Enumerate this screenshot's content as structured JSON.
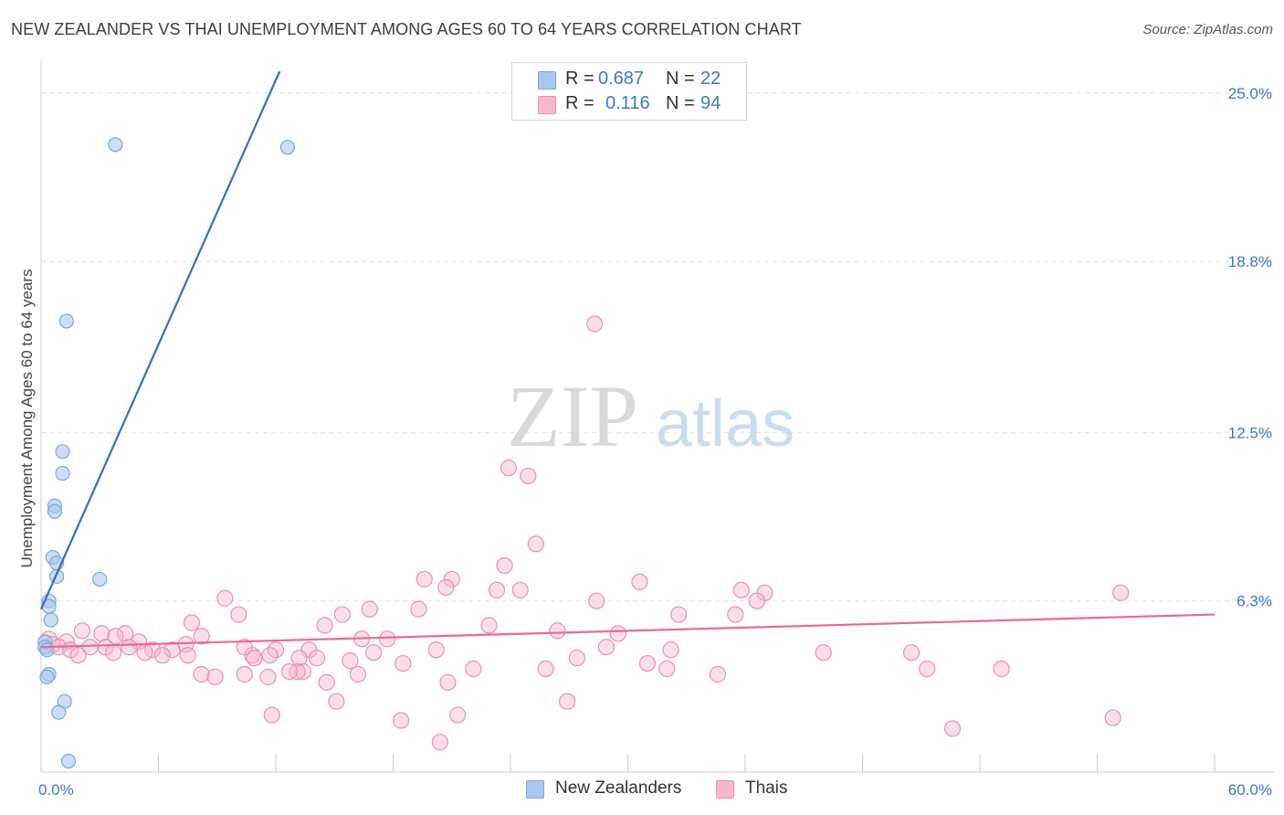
{
  "title": "NEW ZEALANDER VS THAI UNEMPLOYMENT AMONG AGES 60 TO 64 YEARS CORRELATION CHART",
  "source": "Source: ZipAtlas.com",
  "watermark": {
    "zip": "ZIP",
    "atlas": "atlas"
  },
  "colors": {
    "blue_fill": "#a9c8ef",
    "blue_stroke": "#7aa6dd",
    "blue_line": "#2d6fc7",
    "pink_fill": "#f7b8cc",
    "pink_stroke": "#ee8fad",
    "pink_line": "#e76a95",
    "axis_text": "#3b78c6",
    "grid": "#e0e0e0"
  },
  "stats": {
    "rows": [
      {
        "r_label": "R =",
        "r_value": "0.687",
        "n_label": "N =",
        "n_value": "22",
        "color": "#a9c8ef",
        "border": "#7aa6dd"
      },
      {
        "r_label": "R =",
        "r_value": "0.116",
        "n_label": "N =",
        "n_value": "94",
        "color": "#f7b8cc",
        "border": "#ee8fad"
      }
    ]
  },
  "legend": [
    {
      "label": "New Zealanders",
      "color": "#a9c8ef",
      "border": "#7aa6dd"
    },
    {
      "label": "Thais",
      "color": "#f7b8cc",
      "border": "#ee8fad"
    }
  ],
  "chart_data": {
    "type": "scatter",
    "title": "NEW ZEALANDER VS THAI UNEMPLOYMENT AMONG AGES 60 TO 64 YEARS CORRELATION CHART",
    "xlabel": "",
    "ylabel": "Unemployment Among Ages 60 to 64 years",
    "xlim": [
      0,
      60
    ],
    "ylim": [
      0,
      25.8
    ],
    "x_tick_labels": [
      {
        "value": 0,
        "label": "0.0%"
      },
      {
        "value": 60,
        "label": "60.0%"
      }
    ],
    "y_tick_labels": [
      {
        "value": 6.3,
        "label": "6.3%"
      },
      {
        "value": 12.5,
        "label": "12.5%"
      },
      {
        "value": 18.8,
        "label": "18.8%"
      },
      {
        "value": 25.0,
        "label": "25.0%"
      }
    ],
    "series": [
      {
        "name": "New Zealanders",
        "r": 0.687,
        "n": 22,
        "trend": {
          "x0": 0.0,
          "y0": 6.0,
          "x1": 12.2,
          "y1": 25.8
        },
        "points": [
          [
            3.8,
            23.1
          ],
          [
            12.6,
            23.0
          ],
          [
            1.3,
            16.6
          ],
          [
            1.1,
            11.8
          ],
          [
            1.1,
            11.0
          ],
          [
            0.7,
            9.8
          ],
          [
            0.7,
            9.6
          ],
          [
            0.6,
            7.9
          ],
          [
            0.8,
            7.7
          ],
          [
            0.8,
            7.2
          ],
          [
            3.0,
            7.1
          ],
          [
            0.4,
            6.3
          ],
          [
            0.4,
            6.1
          ],
          [
            0.5,
            5.6
          ],
          [
            0.2,
            4.8
          ],
          [
            0.2,
            4.6
          ],
          [
            0.3,
            4.5
          ],
          [
            0.4,
            3.6
          ],
          [
            0.3,
            3.5
          ],
          [
            1.2,
            2.6
          ],
          [
            0.9,
            2.2
          ],
          [
            1.4,
            0.4
          ]
        ]
      },
      {
        "name": "Thais",
        "r": 0.116,
        "n": 94,
        "trend": {
          "x0": 0.0,
          "y0": 4.6,
          "x1": 60.0,
          "y1": 5.8
        },
        "points": [
          [
            28.3,
            16.5
          ],
          [
            23.9,
            11.2
          ],
          [
            24.9,
            10.9
          ],
          [
            25.3,
            8.4
          ],
          [
            23.7,
            7.6
          ],
          [
            19.6,
            7.1
          ],
          [
            21.0,
            7.1
          ],
          [
            30.6,
            7.0
          ],
          [
            20.7,
            6.8
          ],
          [
            23.3,
            6.7
          ],
          [
            24.5,
            6.7
          ],
          [
            35.8,
            6.7
          ],
          [
            37.0,
            6.6
          ],
          [
            55.2,
            6.6
          ],
          [
            9.4,
            6.4
          ],
          [
            28.4,
            6.3
          ],
          [
            36.6,
            6.3
          ],
          [
            19.3,
            6.0
          ],
          [
            16.8,
            6.0
          ],
          [
            10.1,
            5.8
          ],
          [
            15.4,
            5.8
          ],
          [
            32.6,
            5.8
          ],
          [
            35.5,
            5.8
          ],
          [
            7.7,
            5.5
          ],
          [
            14.5,
            5.4
          ],
          [
            22.9,
            5.4
          ],
          [
            2.1,
            5.2
          ],
          [
            4.3,
            5.1
          ],
          [
            3.1,
            5.1
          ],
          [
            26.4,
            5.2
          ],
          [
            29.5,
            5.1
          ],
          [
            3.8,
            5.0
          ],
          [
            8.2,
            5.0
          ],
          [
            16.4,
            4.9
          ],
          [
            17.7,
            4.9
          ],
          [
            1.3,
            4.8
          ],
          [
            5.0,
            4.8
          ],
          [
            7.4,
            4.7
          ],
          [
            0.4,
            4.9
          ],
          [
            0.6,
            4.7
          ],
          [
            0.9,
            4.6
          ],
          [
            1.5,
            4.5
          ],
          [
            2.5,
            4.6
          ],
          [
            3.3,
            4.6
          ],
          [
            4.5,
            4.6
          ],
          [
            5.7,
            4.5
          ],
          [
            6.7,
            4.5
          ],
          [
            10.4,
            4.6
          ],
          [
            12.0,
            4.5
          ],
          [
            13.7,
            4.5
          ],
          [
            17.0,
            4.4
          ],
          [
            20.2,
            4.5
          ],
          [
            28.9,
            4.6
          ],
          [
            32.2,
            4.5
          ],
          [
            40.0,
            4.4
          ],
          [
            44.5,
            4.4
          ],
          [
            1.9,
            4.3
          ],
          [
            3.7,
            4.4
          ],
          [
            5.3,
            4.4
          ],
          [
            6.2,
            4.3
          ],
          [
            7.5,
            4.3
          ],
          [
            10.8,
            4.3
          ],
          [
            11.7,
            4.3
          ],
          [
            13.2,
            4.2
          ],
          [
            14.1,
            4.2
          ],
          [
            15.8,
            4.1
          ],
          [
            18.5,
            4.0
          ],
          [
            27.4,
            4.2
          ],
          [
            31.0,
            4.0
          ],
          [
            32.0,
            3.8
          ],
          [
            45.3,
            3.8
          ],
          [
            49.1,
            3.8
          ],
          [
            8.2,
            3.6
          ],
          [
            10.4,
            3.6
          ],
          [
            13.4,
            3.7
          ],
          [
            22.1,
            3.8
          ],
          [
            25.8,
            3.8
          ],
          [
            34.6,
            3.6
          ],
          [
            8.9,
            3.5
          ],
          [
            11.6,
            3.5
          ],
          [
            16.2,
            3.6
          ],
          [
            13.1,
            3.7
          ],
          [
            12.7,
            3.7
          ],
          [
            14.6,
            3.3
          ],
          [
            20.8,
            3.3
          ],
          [
            15.1,
            2.6
          ],
          [
            26.9,
            2.6
          ],
          [
            11.8,
            2.1
          ],
          [
            21.3,
            2.1
          ],
          [
            18.4,
            1.9
          ],
          [
            54.8,
            2.0
          ],
          [
            46.6,
            1.6
          ],
          [
            20.4,
            1.1
          ],
          [
            10.9,
            4.2
          ]
        ]
      }
    ]
  }
}
